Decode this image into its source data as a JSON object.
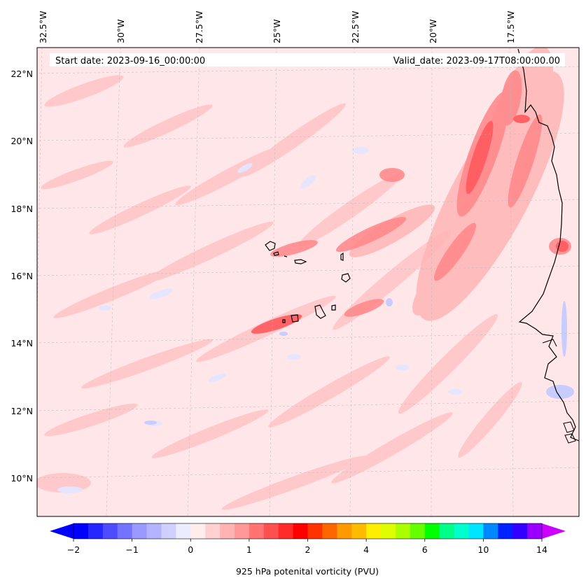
{
  "map": {
    "start_label": "Start date: 2023-09-16_00:00:00",
    "valid_label": "Valid_date: 2023-09-17T08:00:00.00",
    "lon_labels": [
      "32.5°W",
      "30°W",
      "27.5°W",
      "25°W",
      "22.5°W",
      "20°W",
      "17.5°W"
    ],
    "lat_labels": [
      "22°N",
      "20°N",
      "18°N",
      "16°N",
      "14°N",
      "12°N",
      "10°N"
    ],
    "gridlines": "on",
    "background_color": "#ffe6e8",
    "coastline_color": "#000000"
  },
  "colorbar": {
    "label": "925 hPa potenital vorticity (PVU)",
    "tick_labels": [
      "−2",
      "−1",
      "0",
      "1",
      "2",
      "4",
      "6",
      "10",
      "14"
    ],
    "colors": [
      "#0000ff",
      "#2626ff",
      "#4d4dff",
      "#7373ff",
      "#9999ff",
      "#b3b3ff",
      "#d0d0ff",
      "#ececff",
      "#ffecec",
      "#ffd0d0",
      "#ffb3b3",
      "#ff9999",
      "#ff7373",
      "#ff5050",
      "#ff2a2a",
      "#ff0000",
      "#ff3300",
      "#ff6600",
      "#ff9900",
      "#ffbb00",
      "#ffee00",
      "#ddff00",
      "#aaff00",
      "#66ff00",
      "#00ff00",
      "#00ff88",
      "#00ffcc",
      "#00e5ff",
      "#0088ff",
      "#0022ff",
      "#3300ff",
      "#9900ff"
    ],
    "under_color": "#0000ff",
    "over_color": "#cc00ff"
  }
}
